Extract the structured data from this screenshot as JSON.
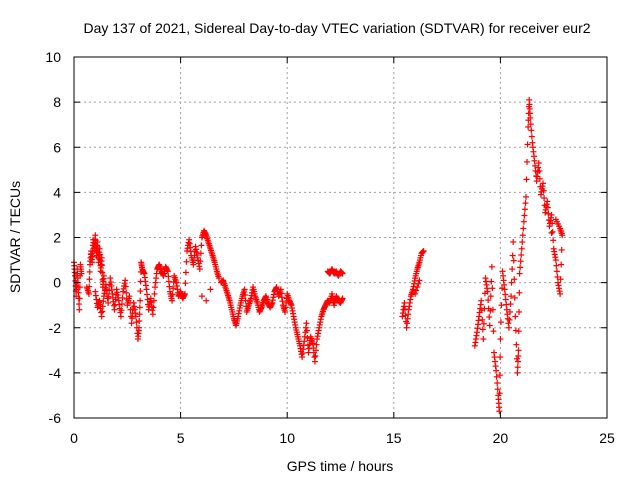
{
  "chart_data": {
    "type": "scatter",
    "title": "Day 137 of 2021, Sidereal Day-to-day VTEC variation (SDTVAR) for receiver eur2",
    "xlabel": "GPS time / hours",
    "ylabel": "SDTVAR / TECUs",
    "xlim": [
      0,
      25
    ],
    "ylim": [
      -6,
      10
    ],
    "xticks": [
      "0",
      "5",
      "10",
      "15",
      "20",
      "25"
    ],
    "yticks": [
      "-6",
      "-4",
      "-2",
      "0",
      "2",
      "4",
      "6",
      "8",
      "10"
    ],
    "grid": true,
    "marker": "+",
    "color": "#ff0000",
    "series": [
      {
        "name": "SDTVAR eur2",
        "points": [
          [
            0.0,
            0.9
          ],
          [
            0.05,
            0.3
          ],
          [
            0.1,
            -0.6
          ],
          [
            0.15,
            0.6
          ],
          [
            0.2,
            -0.2
          ],
          [
            0.25,
            -1.2
          ],
          [
            0.3,
            0.8
          ],
          [
            0.35,
            0.4
          ],
          [
            0.6,
            -0.2
          ],
          [
            0.7,
            -0.5
          ],
          [
            0.75,
            0.8
          ],
          [
            0.8,
            1.4
          ],
          [
            0.85,
            0.9
          ],
          [
            0.9,
            1.9
          ],
          [
            0.95,
            1.4
          ],
          [
            1.0,
            2.1
          ],
          [
            1.05,
            1.2
          ],
          [
            1.1,
            1.8
          ],
          [
            1.15,
            0.9
          ],
          [
            1.2,
            1.5
          ],
          [
            1.25,
            0.5
          ],
          [
            1.3,
            1.1
          ],
          [
            1.35,
            -0.2
          ],
          [
            1.4,
            0.3
          ],
          [
            1.0,
            -0.4
          ],
          [
            1.1,
            -1.1
          ],
          [
            1.2,
            -0.8
          ],
          [
            1.3,
            -1.5
          ],
          [
            1.4,
            -0.6
          ],
          [
            1.5,
            -0.1
          ],
          [
            1.6,
            -0.9
          ],
          [
            1.7,
            0.2
          ],
          [
            1.8,
            -0.5
          ],
          [
            1.9,
            -1.2
          ],
          [
            2.0,
            -0.3
          ],
          [
            2.1,
            -0.8
          ],
          [
            2.2,
            -1.5
          ],
          [
            2.3,
            -0.4
          ],
          [
            2.4,
            0.1
          ],
          [
            2.5,
            -1.0
          ],
          [
            2.6,
            -0.6
          ],
          [
            2.7,
            -1.8
          ],
          [
            2.8,
            -0.9
          ],
          [
            2.9,
            -1.5
          ],
          [
            3.0,
            -2.5
          ],
          [
            3.05,
            -2.0
          ],
          [
            3.1,
            -0.8
          ],
          [
            3.15,
            0.9
          ],
          [
            3.2,
            0.6
          ],
          [
            3.3,
            0.4
          ],
          [
            3.4,
            -0.3
          ],
          [
            3.5,
            -1.2
          ],
          [
            3.6,
            -0.7
          ],
          [
            3.7,
            -1.4
          ],
          [
            3.8,
            -0.2
          ],
          [
            3.9,
            0.6
          ],
          [
            4.0,
            0.8
          ],
          [
            4.1,
            0.5
          ],
          [
            4.2,
            0.3
          ],
          [
            4.3,
            0.7
          ],
          [
            4.4,
            0.5
          ],
          [
            4.5,
            -0.4
          ],
          [
            4.6,
            -0.8
          ],
          [
            4.7,
            0.3
          ],
          [
            4.8,
            0.0
          ],
          [
            4.9,
            -0.6
          ],
          [
            5.0,
            -0.4
          ],
          [
            5.1,
            -0.7
          ],
          [
            5.2,
            -0.5
          ],
          [
            5.3,
            1.4
          ],
          [
            5.4,
            1.9
          ],
          [
            5.5,
            1.2
          ],
          [
            5.6,
            0.8
          ],
          [
            5.7,
            1.6
          ],
          [
            5.8,
            1.1
          ],
          [
            5.9,
            0.6
          ],
          [
            6.0,
            2.0
          ],
          [
            6.1,
            2.3
          ],
          [
            6.2,
            2.1
          ],
          [
            6.3,
            1.8
          ],
          [
            6.4,
            1.5
          ],
          [
            6.5,
            1.2
          ],
          [
            6.6,
            0.9
          ],
          [
            6.7,
            0.5
          ],
          [
            6.8,
            0.2
          ],
          [
            6.0,
            -0.6
          ],
          [
            6.2,
            -0.8
          ],
          [
            6.4,
            -0.3
          ],
          [
            6.9,
            0.0
          ],
          [
            7.0,
            0.1
          ],
          [
            7.1,
            -0.2
          ],
          [
            7.2,
            -0.5
          ],
          [
            7.3,
            -0.8
          ],
          [
            7.4,
            -1.2
          ],
          [
            7.5,
            -1.6
          ],
          [
            7.6,
            -1.9
          ],
          [
            7.7,
            -1.5
          ],
          [
            7.8,
            -1.0
          ],
          [
            7.9,
            -0.6
          ],
          [
            8.0,
            -0.3
          ],
          [
            8.1,
            -1.3
          ],
          [
            8.2,
            -1.0
          ],
          [
            8.3,
            -0.7
          ],
          [
            8.4,
            -0.2
          ],
          [
            8.5,
            -0.6
          ],
          [
            8.6,
            -0.9
          ],
          [
            8.7,
            -1.3
          ],
          [
            8.8,
            -1.1
          ],
          [
            8.9,
            -0.8
          ],
          [
            9.0,
            -0.6
          ],
          [
            9.1,
            -0.9
          ],
          [
            9.2,
            -1.1
          ],
          [
            9.3,
            -0.9
          ],
          [
            9.4,
            -0.4
          ],
          [
            9.5,
            -0.2
          ],
          [
            9.6,
            -0.6
          ],
          [
            9.7,
            -0.3
          ],
          [
            9.8,
            -1.0
          ],
          [
            9.9,
            -1.3
          ],
          [
            10.0,
            -0.5
          ],
          [
            10.1,
            -0.8
          ],
          [
            10.2,
            -1.0
          ],
          [
            10.3,
            -1.5
          ],
          [
            10.4,
            -2.0
          ],
          [
            10.5,
            -2.4
          ],
          [
            10.6,
            -2.8
          ],
          [
            10.7,
            -3.3
          ],
          [
            10.8,
            -2.6
          ],
          [
            10.9,
            -1.8
          ],
          [
            11.0,
            -3.1
          ],
          [
            11.1,
            -2.4
          ],
          [
            11.2,
            -2.7
          ],
          [
            11.3,
            -3.5
          ],
          [
            11.4,
            -2.5
          ],
          [
            11.5,
            -2.0
          ],
          [
            11.6,
            -1.5
          ],
          [
            11.7,
            -1.2
          ],
          [
            11.8,
            -1.0
          ],
          [
            11.9,
            -0.8
          ],
          [
            12.0,
            -0.9
          ],
          [
            12.1,
            -0.5
          ],
          [
            12.2,
            -1.0
          ],
          [
            12.3,
            -0.6
          ],
          [
            12.4,
            -0.8
          ],
          [
            12.5,
            -0.9
          ],
          [
            12.6,
            -0.7
          ],
          [
            11.9,
            0.5
          ],
          [
            12.0,
            0.4
          ],
          [
            12.1,
            0.6
          ],
          [
            12.2,
            0.4
          ],
          [
            12.3,
            0.5
          ],
          [
            12.4,
            0.3
          ],
          [
            12.5,
            0.5
          ],
          [
            12.6,
            0.4
          ],
          [
            15.4,
            -1.5
          ],
          [
            15.5,
            -0.9
          ],
          [
            15.6,
            -2.0
          ],
          [
            15.7,
            -1.2
          ],
          [
            15.8,
            -0.6
          ],
          [
            15.9,
            -0.3
          ],
          [
            16.0,
            0.2
          ],
          [
            16.1,
            0.6
          ],
          [
            16.2,
            0.9
          ],
          [
            16.3,
            1.3
          ],
          [
            16.4,
            1.4
          ],
          [
            16.0,
            -0.5
          ],
          [
            16.2,
            0.1
          ],
          [
            18.8,
            -2.8
          ],
          [
            18.9,
            -2.2
          ],
          [
            19.0,
            -1.5
          ],
          [
            19.1,
            -0.8
          ],
          [
            19.2,
            -2.5
          ],
          [
            19.3,
            0.2
          ],
          [
            19.4,
            -0.4
          ],
          [
            19.5,
            -1.9
          ],
          [
            19.6,
            0.7
          ],
          [
            19.7,
            -3.1
          ],
          [
            19.8,
            -3.9
          ],
          [
            19.9,
            -5.0
          ],
          [
            19.95,
            -5.7
          ],
          [
            20.0,
            -2.5
          ],
          [
            20.1,
            0.5
          ],
          [
            20.2,
            -0.3
          ],
          [
            20.3,
            -1.2
          ],
          [
            20.4,
            -2.0
          ],
          [
            20.5,
            -0.6
          ],
          [
            20.6,
            1.8
          ],
          [
            20.7,
            -1.5
          ],
          [
            20.8,
            -4.0
          ],
          [
            20.85,
            -3.0
          ],
          [
            20.9,
            0.4
          ],
          [
            21.0,
            1.5
          ],
          [
            21.1,
            2.7
          ],
          [
            21.2,
            3.8
          ],
          [
            21.3,
            6.9
          ],
          [
            21.35,
            8.1
          ],
          [
            21.4,
            7.3
          ],
          [
            21.5,
            6.2
          ],
          [
            21.6,
            5.4
          ],
          [
            21.7,
            4.5
          ],
          [
            21.8,
            5.3
          ],
          [
            21.9,
            3.9
          ],
          [
            22.0,
            4.4
          ],
          [
            22.1,
            3.1
          ],
          [
            22.2,
            3.6
          ],
          [
            22.3,
            2.5
          ],
          [
            22.4,
            3.0
          ],
          [
            22.5,
            1.5
          ],
          [
            22.6,
            1.0
          ],
          [
            22.7,
            0.0
          ],
          [
            22.8,
            -0.5
          ],
          [
            22.9,
            2.1
          ],
          [
            22.8,
            2.4
          ],
          [
            22.6,
            2.8
          ],
          [
            22.4,
            2.2
          ]
        ]
      }
    ]
  }
}
